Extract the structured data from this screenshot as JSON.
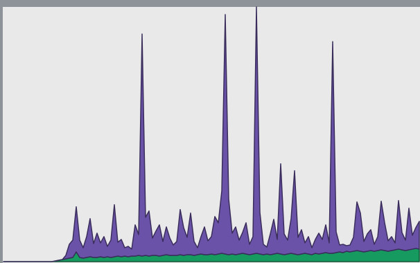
{
  "chart_data": {
    "type": "area",
    "stacked": true,
    "series": [
      {
        "color": "#179a5f",
        "values": [
          0,
          0,
          0,
          0,
          0,
          0,
          0,
          0,
          0,
          0,
          0,
          0,
          0,
          0,
          0,
          1,
          2,
          3,
          4,
          5,
          6,
          14,
          6,
          5,
          6,
          7,
          6,
          6,
          7,
          6,
          7,
          6,
          7,
          8,
          7,
          8,
          7,
          8,
          8,
          9,
          8,
          9,
          8,
          9,
          9,
          8,
          9,
          10,
          9,
          9,
          9,
          10,
          9,
          10,
          10,
          9,
          10,
          11,
          10,
          10,
          11,
          10,
          11,
          12,
          11,
          10,
          11,
          10,
          11,
          12,
          11,
          10,
          11,
          12,
          11,
          10,
          11,
          10,
          11,
          12,
          11,
          10,
          11,
          12,
          11,
          10,
          11,
          12,
          11,
          10,
          12,
          11,
          12,
          13,
          12,
          12,
          13,
          14,
          13,
          15,
          14,
          15,
          16,
          15,
          14,
          15,
          16,
          15,
          16,
          17,
          16,
          15,
          16,
          17,
          18,
          17,
          16,
          17,
          18,
          19,
          18
        ]
      },
      {
        "color": "#6a52a8",
        "values": [
          0,
          0,
          0,
          0,
          0,
          0,
          0,
          0,
          0,
          0,
          0,
          0,
          0,
          0,
          0,
          0,
          0,
          0,
          5,
          20,
          25,
          65,
          25,
          15,
          30,
          55,
          20,
          35,
          20,
          30,
          15,
          25,
          75,
          20,
          25,
          12,
          15,
          10,
          45,
          30,
          320,
          55,
          65,
          25,
          35,
          45,
          20,
          40,
          25,
          15,
          20,
          65,
          40,
          25,
          60,
          20,
          10,
          25,
          40,
          20,
          25,
          55,
          45,
          90,
          345,
          80,
          30,
          40,
          20,
          30,
          45,
          15,
          25,
          355,
          60,
          15,
          10,
          30,
          50,
          20,
          130,
          30,
          20,
          50,
          120,
          25,
          35,
          15,
          25,
          10,
          20,
          30,
          20,
          40,
          15,
          305,
          30,
          10,
          12,
          8,
          10,
          20,
          70,
          55,
          15,
          25,
          30,
          10,
          20,
          70,
          40,
          15,
          20,
          10,
          70,
          25,
          15,
          60,
          20,
          30,
          40
        ]
      }
    ]
  }
}
